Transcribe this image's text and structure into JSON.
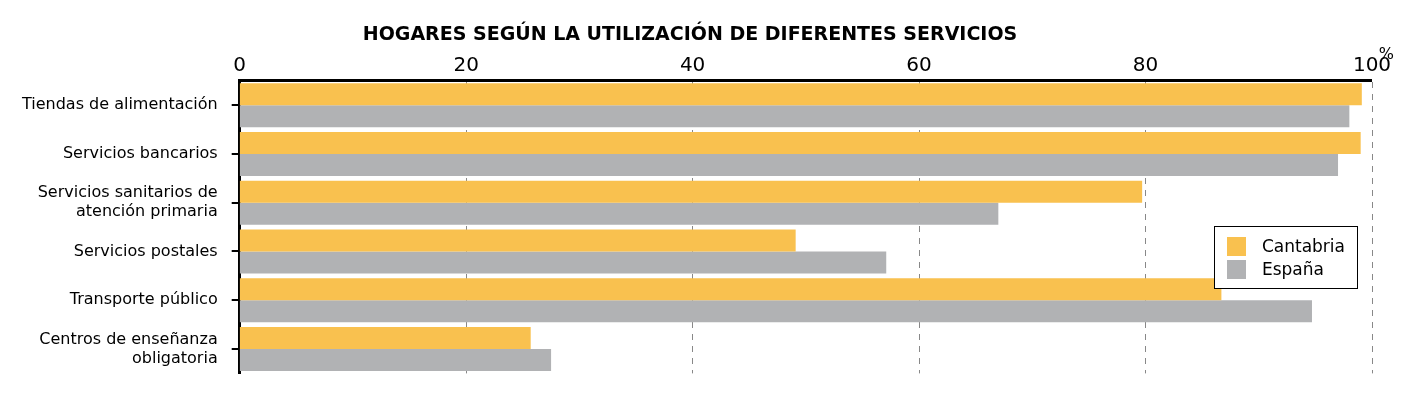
{
  "chart_data": {
    "type": "bar",
    "orientation": "horizontal",
    "title": "HOGARES SEGÚN LA UTILIZACIÓN DE DIFERENTES SERVICIOS",
    "xlabel": "%",
    "categories": [
      "Tiendas de alimentación",
      "Servicios bancarios",
      "Servicios sanitarios de atención primaria",
      "Servicios postales",
      "Transporte público",
      "Centros de enseñanza obligatoria"
    ],
    "series": [
      {
        "name": "Cantabria",
        "color": "#f9c14f",
        "values": [
          99.1,
          99.0,
          79.7,
          49.1,
          86.7,
          25.7
        ]
      },
      {
        "name": "España",
        "color": "#b1b2b4",
        "values": [
          98.0,
          97.0,
          67.0,
          57.1,
          94.7,
          27.5
        ]
      }
    ],
    "xlim": [
      0,
      100
    ],
    "xticks": [
      0,
      20,
      40,
      60,
      80,
      100
    ],
    "grid": "x",
    "legend": "right"
  }
}
